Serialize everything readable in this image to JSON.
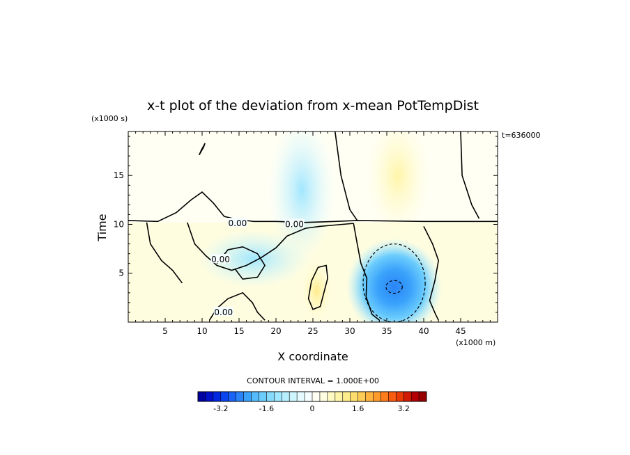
{
  "chart_data": {
    "type": "heatmap",
    "title": "x-t plot of the deviation from x-mean PotTempDist",
    "xlabel": "X coordinate",
    "ylabel": "Time",
    "x_units": "(x1000 m)",
    "y_units": "(x1000 s)",
    "time_stamp": "t=636000",
    "xlim": [
      0,
      50
    ],
    "ylim": [
      0,
      19.5
    ],
    "x_ticks": [
      5,
      10,
      15,
      20,
      25,
      30,
      35,
      40,
      45
    ],
    "y_ticks": [
      5,
      10,
      15
    ],
    "contour_interval_text": "CONTOUR INTERVAL = 1.000E+00",
    "contour_labels": [
      {
        "text": "0.00",
        "x": 14.8,
        "y": 10.1
      },
      {
        "text": "0.00",
        "x": 22.5,
        "y": 10.0
      },
      {
        "text": "0.00",
        "x": 12.5,
        "y": 6.4
      },
      {
        "text": "0.00",
        "x": 12.9,
        "y": 1.0
      }
    ],
    "colorbar": {
      "range": [
        -4,
        4
      ],
      "tick_values": [
        -3.2,
        -1.6,
        0,
        1.6,
        3.2
      ],
      "tick_labels": [
        "-3.2",
        "-1.6",
        "0",
        "1.6",
        "3.2"
      ],
      "colors": [
        "#0000a0",
        "#0010c8",
        "#0028e0",
        "#0a46f0",
        "#1a64f5",
        "#2a84f8",
        "#3aa2fb",
        "#56bafc",
        "#6ccdfd",
        "#86dbfd",
        "#a0e6fe",
        "#b8effe",
        "#ccf5fe",
        "#e4fafe",
        "#f6fdfe",
        "#fffff4",
        "#fffde0",
        "#fffac4",
        "#fff5a8",
        "#ffec8c",
        "#ffde70",
        "#ffcc58",
        "#ffb440",
        "#ff9a2c",
        "#ff7c1c",
        "#f85c10",
        "#e83c08",
        "#d01c04",
        "#b40002",
        "#960000"
      ]
    },
    "regions": [
      {
        "name": "upper-background",
        "value": 0.2
      },
      {
        "name": "upper-negative-plume",
        "center": [
          23.5,
          13.5
        ],
        "value": -0.6
      },
      {
        "name": "upper-positive-plume",
        "center": [
          36.5,
          15.0
        ],
        "value": 0.4
      },
      {
        "name": "lower-positive-band",
        "value": 0.4
      },
      {
        "name": "cold-core",
        "center": [
          36.0,
          3.6
        ],
        "value": -2.0
      },
      {
        "name": "cold-tongue",
        "center": [
          17.0,
          6.5
        ],
        "value": -0.6
      },
      {
        "name": "warm-streak",
        "center": [
          25.5,
          3.2
        ],
        "value": 0.9
      }
    ]
  }
}
